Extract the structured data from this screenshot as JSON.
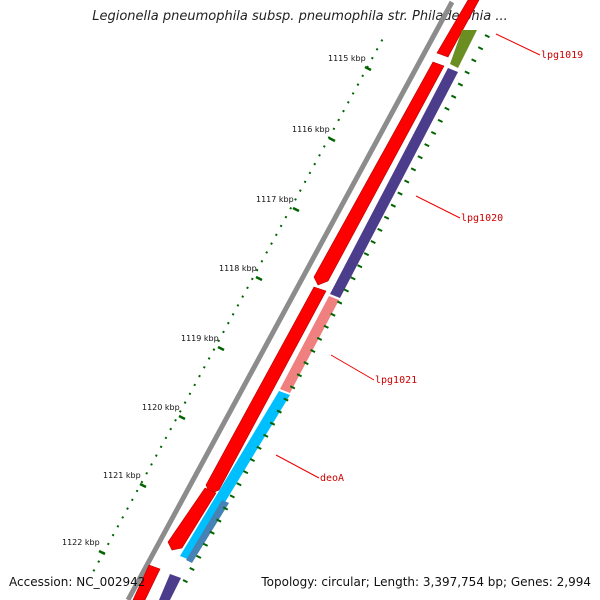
{
  "title": "Legionella pneumophila subsp. pneumophila str. Philadelphia ...",
  "footer": {
    "accession": "Accession: NC_002942",
    "summary": "Topology: circular; Length: 3,397,754 bp; Genes: 2,994"
  },
  "colors": {
    "backbone": "#8c8c8c",
    "forward_cds": "#ff0000",
    "reverse_cds": "#4b3c8c",
    "lpg1021": "#f08080",
    "deoA": "#00bfff",
    "olive": "#6b8e23",
    "ticks": "#006400",
    "label_text": "#cc0000",
    "leader": "#ee0000"
  },
  "scale": {
    "unit": "kbp",
    "labels": [
      "1115 kbp",
      "1116 kbp",
      "1117 kbp",
      "1118 kbp",
      "1119 kbp",
      "1120 kbp",
      "1121 kbp",
      "1122 kbp"
    ]
  },
  "gene_labels": [
    "lpg1019",
    "lpg1020",
    "lpg1021",
    "deoA"
  ]
}
